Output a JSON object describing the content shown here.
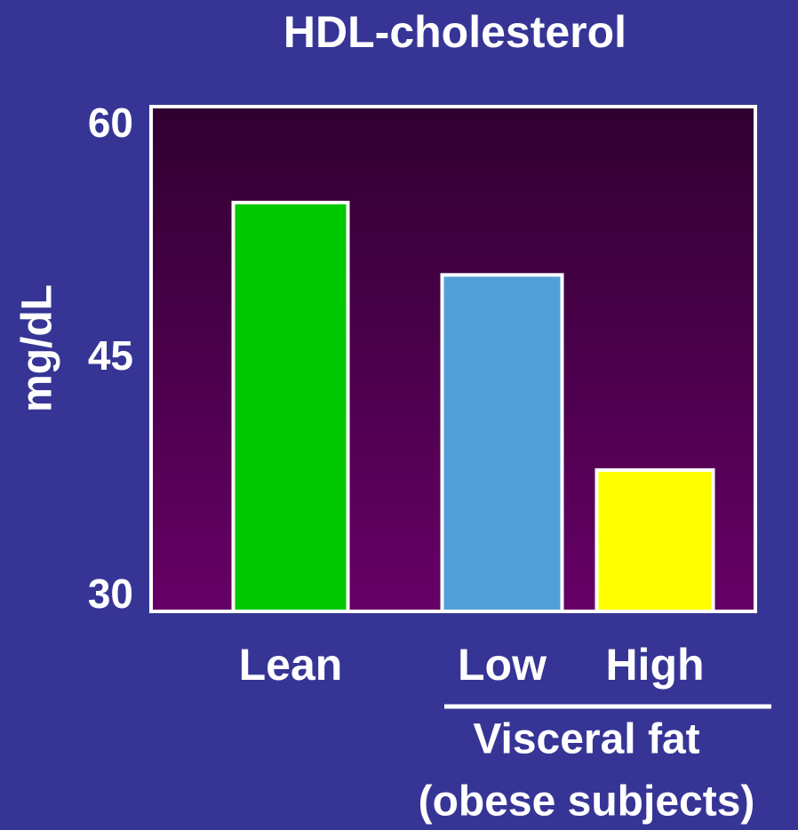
{
  "chart_data": {
    "type": "bar",
    "title": "HDL-cholesterol",
    "y_label": "mg/dL",
    "categories": [
      "Lean",
      "Low",
      "High"
    ],
    "values": [
      54.3,
      50,
      38.4
    ],
    "colors": [
      "#00c800",
      "#52a0d8",
      "#ffff00"
    ],
    "ylim": [
      30,
      60
    ],
    "yticks": [
      30,
      45,
      60
    ],
    "annotations": [
      "Visceral fat",
      "(obese subjects)"
    ]
  }
}
